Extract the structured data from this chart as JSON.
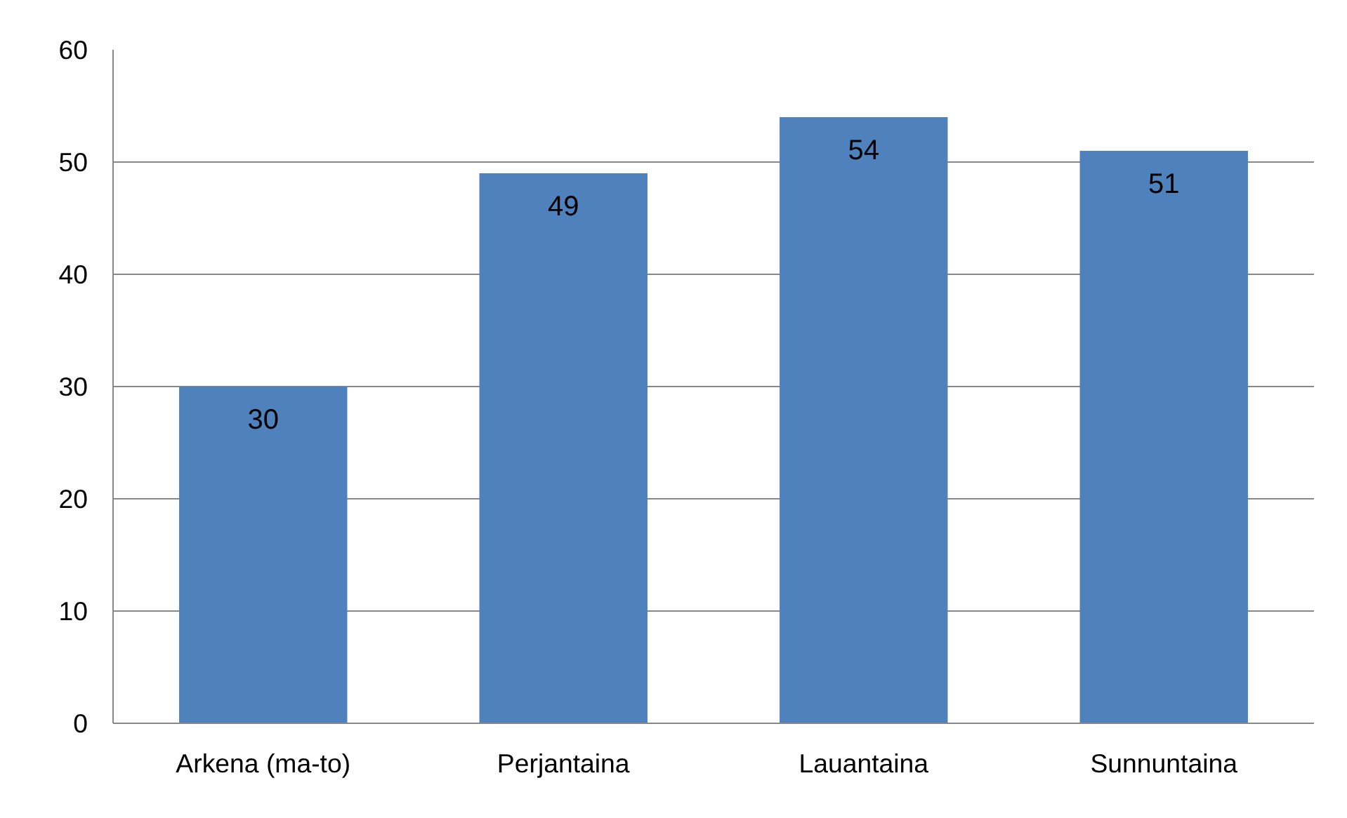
{
  "chart_data": {
    "type": "bar",
    "categories": [
      "Arkena (ma-to)",
      "Perjantaina",
      "Lauantaina",
      "Sunnuntaina"
    ],
    "values": [
      30,
      49,
      54,
      51
    ],
    "color": "#4f81bd",
    "ylim": [
      0,
      60
    ],
    "yticks": [
      0,
      10,
      20,
      30,
      40,
      50,
      60
    ],
    "grid": "y",
    "data_labels": true
  }
}
